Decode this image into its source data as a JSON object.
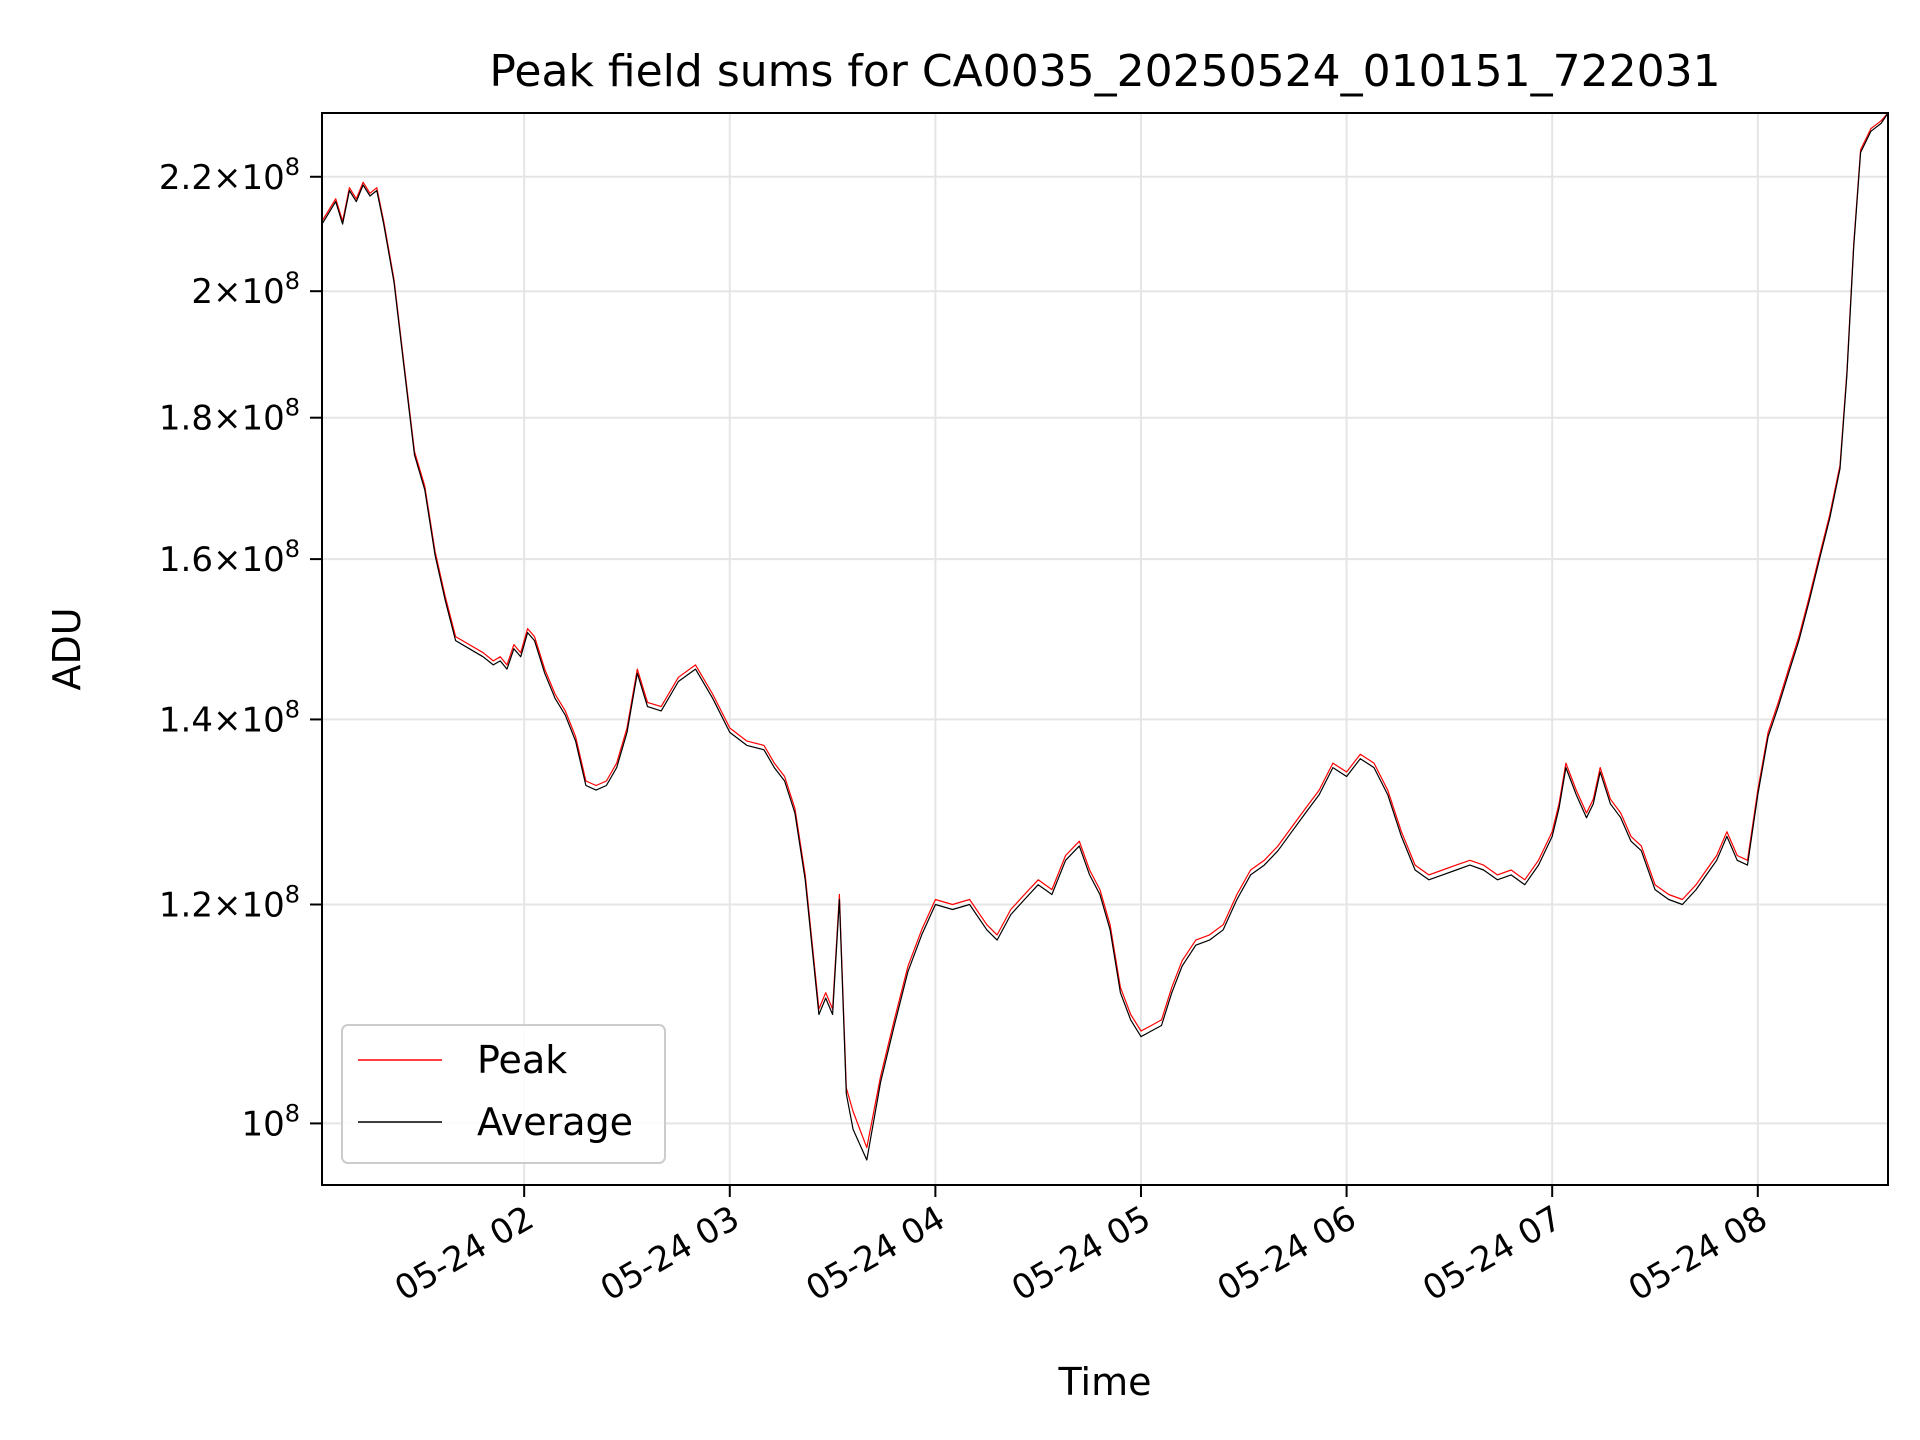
{
  "chart_data": {
    "type": "line",
    "title": "Peak field sums for CA0035_20250524_010151_722031",
    "xlabel": "Time",
    "ylabel": "ADU",
    "xlim": [
      "2025-05-24 01:01",
      "2025-05-24 08:38"
    ],
    "ylim": [
      95000000,
      232000000
    ],
    "yscale": "log",
    "grid": true,
    "legend_position": "lower left",
    "x_ticks": [
      {
        "t": "2025-05-24 02:00",
        "label": "05-24 02"
      },
      {
        "t": "2025-05-24 03:00",
        "label": "05-24 03"
      },
      {
        "t": "2025-05-24 04:00",
        "label": "05-24 04"
      },
      {
        "t": "2025-05-24 05:00",
        "label": "05-24 05"
      },
      {
        "t": "2025-05-24 06:00",
        "label": "05-24 06"
      },
      {
        "t": "2025-05-24 07:00",
        "label": "05-24 07"
      },
      {
        "t": "2025-05-24 08:00",
        "label": "05-24 08"
      }
    ],
    "y_ticks": [
      {
        "v": 100000000,
        "base": "10",
        "exp": "8"
      },
      {
        "v": 120000000,
        "mant": "1.2",
        "base": "10",
        "exp": "8"
      },
      {
        "v": 140000000,
        "mant": "1.4",
        "base": "10",
        "exp": "8"
      },
      {
        "v": 160000000,
        "mant": "1.6",
        "base": "10",
        "exp": "8"
      },
      {
        "v": 180000000,
        "mant": "1.8",
        "base": "10",
        "exp": "8"
      },
      {
        "v": 200000000,
        "mant": "2",
        "base": "10",
        "exp": "8"
      },
      {
        "v": 220000000,
        "mant": "2.2",
        "base": "10",
        "exp": "8"
      }
    ],
    "series": [
      {
        "name": "Peak",
        "color": "#ff0000",
        "width": 1.2,
        "x": [
          "2025-05-24 01:01",
          "2025-05-24 01:03",
          "2025-05-24 01:05",
          "2025-05-24 01:07",
          "2025-05-24 01:09",
          "2025-05-24 01:11",
          "2025-05-24 01:13",
          "2025-05-24 01:15",
          "2025-05-24 01:17",
          "2025-05-24 01:19",
          "2025-05-24 01:22",
          "2025-05-24 01:25",
          "2025-05-24 01:28",
          "2025-05-24 01:31",
          "2025-05-24 01:34",
          "2025-05-24 01:37",
          "2025-05-24 01:40",
          "2025-05-24 01:44",
          "2025-05-24 01:48",
          "2025-05-24 01:51",
          "2025-05-24 01:53",
          "2025-05-24 01:55",
          "2025-05-24 01:57",
          "2025-05-24 01:59",
          "2025-05-24 02:01",
          "2025-05-24 02:03",
          "2025-05-24 02:06",
          "2025-05-24 02:09",
          "2025-05-24 02:12",
          "2025-05-24 02:15",
          "2025-05-24 02:18",
          "2025-05-24 02:21",
          "2025-05-24 02:24",
          "2025-05-24 02:27",
          "2025-05-24 02:30",
          "2025-05-24 02:33",
          "2025-05-24 02:36",
          "2025-05-24 02:40",
          "2025-05-24 02:45",
          "2025-05-24 02:50",
          "2025-05-24 02:55",
          "2025-05-24 03:00",
          "2025-05-24 03:05",
          "2025-05-24 03:10",
          "2025-05-24 03:13",
          "2025-05-24 03:16",
          "2025-05-24 03:19",
          "2025-05-24 03:22",
          "2025-05-24 03:26",
          "2025-05-24 03:28",
          "2025-05-24 03:30",
          "2025-05-24 03:32",
          "2025-05-24 03:34",
          "2025-05-24 03:36",
          "2025-05-24 03:40",
          "2025-05-24 03:44",
          "2025-05-24 03:48",
          "2025-05-24 03:52",
          "2025-05-24 03:56",
          "2025-05-24 04:00",
          "2025-05-24 04:05",
          "2025-05-24 04:10",
          "2025-05-24 04:15",
          "2025-05-24 04:18",
          "2025-05-24 04:22",
          "2025-05-24 04:26",
          "2025-05-24 04:30",
          "2025-05-24 04:34",
          "2025-05-24 04:38",
          "2025-05-24 04:42",
          "2025-05-24 04:45",
          "2025-05-24 04:48",
          "2025-05-24 04:51",
          "2025-05-24 04:54",
          "2025-05-24 04:57",
          "2025-05-24 05:00",
          "2025-05-24 05:03",
          "2025-05-24 05:06",
          "2025-05-24 05:09",
          "2025-05-24 05:12",
          "2025-05-24 05:16",
          "2025-05-24 05:20",
          "2025-05-24 05:24",
          "2025-05-24 05:28",
          "2025-05-24 05:32",
          "2025-05-24 05:36",
          "2025-05-24 05:40",
          "2025-05-24 05:44",
          "2025-05-24 05:48",
          "2025-05-24 05:52",
          "2025-05-24 05:56",
          "2025-05-24 06:00",
          "2025-05-24 06:04",
          "2025-05-24 06:08",
          "2025-05-24 06:12",
          "2025-05-24 06:16",
          "2025-05-24 06:20",
          "2025-05-24 06:24",
          "2025-05-24 06:28",
          "2025-05-24 06:32",
          "2025-05-24 06:36",
          "2025-05-24 06:40",
          "2025-05-24 06:44",
          "2025-05-24 06:48",
          "2025-05-24 06:52",
          "2025-05-24 06:56",
          "2025-05-24 07:00",
          "2025-05-24 07:02",
          "2025-05-24 07:04",
          "2025-05-24 07:07",
          "2025-05-24 07:10",
          "2025-05-24 07:12",
          "2025-05-24 07:14",
          "2025-05-24 07:17",
          "2025-05-24 07:20",
          "2025-05-24 07:23",
          "2025-05-24 07:26",
          "2025-05-24 07:30",
          "2025-05-24 07:34",
          "2025-05-24 07:38",
          "2025-05-24 07:42",
          "2025-05-24 07:45",
          "2025-05-24 07:48",
          "2025-05-24 07:51",
          "2025-05-24 07:54",
          "2025-05-24 07:57",
          "2025-05-24 08:00",
          "2025-05-24 08:03",
          "2025-05-24 08:06",
          "2025-05-24 08:09",
          "2025-05-24 08:12",
          "2025-05-24 08:15",
          "2025-05-24 08:18",
          "2025-05-24 08:21",
          "2025-05-24 08:24",
          "2025-05-24 08:26",
          "2025-05-24 08:28",
          "2025-05-24 08:30",
          "2025-05-24 08:33",
          "2025-05-24 08:36",
          "2025-05-24 08:38"
        ],
        "values": [
          212000000,
          214000000,
          216000000,
          212000000,
          218000000,
          216000000,
          219000000,
          217000000,
          218000000,
          212000000,
          202000000,
          188000000,
          175000000,
          170000000,
          161000000,
          155000000,
          150000000,
          149000000,
          148000000,
          147000000,
          147500000,
          146500000,
          149000000,
          148000000,
          151000000,
          150000000,
          146000000,
          143000000,
          141000000,
          138000000,
          133000000,
          132500000,
          133000000,
          135000000,
          139000000,
          146000000,
          142000000,
          141500000,
          145000000,
          146500000,
          143000000,
          139000000,
          137500000,
          137000000,
          135000000,
          133500000,
          130000000,
          123000000,
          110000000,
          111500000,
          110000000,
          121000000,
          103000000,
          101000000,
          98000000,
          104000000,
          109000000,
          114000000,
          117500000,
          120500000,
          120000000,
          120500000,
          118000000,
          117000000,
          119500000,
          121000000,
          122500000,
          121500000,
          125000000,
          126500000,
          123500000,
          121500000,
          118000000,
          112000000,
          109500000,
          108000000,
          108500000,
          109000000,
          112000000,
          114500000,
          116500000,
          117000000,
          118000000,
          121000000,
          123500000,
          124500000,
          126000000,
          128000000,
          130000000,
          132000000,
          135000000,
          134000000,
          136000000,
          135000000,
          132000000,
          127500000,
          124000000,
          123000000,
          123500000,
          124000000,
          124500000,
          124000000,
          123000000,
          123500000,
          122500000,
          124500000,
          127500000,
          130500000,
          135000000,
          132000000,
          129500000,
          131000000,
          134500000,
          131000000,
          129500000,
          127000000,
          126000000,
          122000000,
          121000000,
          120500000,
          122000000,
          123500000,
          125000000,
          127500000,
          125000000,
          124500000,
          132000000,
          138500000,
          142000000,
          146000000,
          150000000,
          155000000,
          160500000,
          166000000,
          173000000,
          187000000,
          208000000,
          225000000,
          229000000,
          230500000,
          232000000
        ]
      },
      {
        "name": "Average",
        "color": "#000000",
        "width": 1.2,
        "x": [
          "2025-05-24 01:01",
          "2025-05-24 01:03",
          "2025-05-24 01:05",
          "2025-05-24 01:07",
          "2025-05-24 01:09",
          "2025-05-24 01:11",
          "2025-05-24 01:13",
          "2025-05-24 01:15",
          "2025-05-24 01:17",
          "2025-05-24 01:19",
          "2025-05-24 01:22",
          "2025-05-24 01:25",
          "2025-05-24 01:28",
          "2025-05-24 01:31",
          "2025-05-24 01:34",
          "2025-05-24 01:37",
          "2025-05-24 01:40",
          "2025-05-24 01:44",
          "2025-05-24 01:48",
          "2025-05-24 01:51",
          "2025-05-24 01:53",
          "2025-05-24 01:55",
          "2025-05-24 01:57",
          "2025-05-24 01:59",
          "2025-05-24 02:01",
          "2025-05-24 02:03",
          "2025-05-24 02:06",
          "2025-05-24 02:09",
          "2025-05-24 02:12",
          "2025-05-24 02:15",
          "2025-05-24 02:18",
          "2025-05-24 02:21",
          "2025-05-24 02:24",
          "2025-05-24 02:27",
          "2025-05-24 02:30",
          "2025-05-24 02:33",
          "2025-05-24 02:36",
          "2025-05-24 02:40",
          "2025-05-24 02:45",
          "2025-05-24 02:50",
          "2025-05-24 02:55",
          "2025-05-24 03:00",
          "2025-05-24 03:05",
          "2025-05-24 03:10",
          "2025-05-24 03:13",
          "2025-05-24 03:16",
          "2025-05-24 03:19",
          "2025-05-24 03:22",
          "2025-05-24 03:26",
          "2025-05-24 03:28",
          "2025-05-24 03:30",
          "2025-05-24 03:32",
          "2025-05-24 03:34",
          "2025-05-24 03:36",
          "2025-05-24 03:40",
          "2025-05-24 03:44",
          "2025-05-24 03:48",
          "2025-05-24 03:52",
          "2025-05-24 03:56",
          "2025-05-24 04:00",
          "2025-05-24 04:05",
          "2025-05-24 04:10",
          "2025-05-24 04:15",
          "2025-05-24 04:18",
          "2025-05-24 04:22",
          "2025-05-24 04:26",
          "2025-05-24 04:30",
          "2025-05-24 04:34",
          "2025-05-24 04:38",
          "2025-05-24 04:42",
          "2025-05-24 04:45",
          "2025-05-24 04:48",
          "2025-05-24 04:51",
          "2025-05-24 04:54",
          "2025-05-24 04:57",
          "2025-05-24 05:00",
          "2025-05-24 05:03",
          "2025-05-24 05:06",
          "2025-05-24 05:09",
          "2025-05-24 05:12",
          "2025-05-24 05:16",
          "2025-05-24 05:20",
          "2025-05-24 05:24",
          "2025-05-24 05:28",
          "2025-05-24 05:32",
          "2025-05-24 05:36",
          "2025-05-24 05:40",
          "2025-05-24 05:44",
          "2025-05-24 05:48",
          "2025-05-24 05:52",
          "2025-05-24 05:56",
          "2025-05-24 06:00",
          "2025-05-24 06:04",
          "2025-05-24 06:08",
          "2025-05-24 06:12",
          "2025-05-24 06:16",
          "2025-05-24 06:20",
          "2025-05-24 06:24",
          "2025-05-24 06:28",
          "2025-05-24 06:32",
          "2025-05-24 06:36",
          "2025-05-24 06:40",
          "2025-05-24 06:44",
          "2025-05-24 06:48",
          "2025-05-24 06:52",
          "2025-05-24 06:56",
          "2025-05-24 07:00",
          "2025-05-24 07:02",
          "2025-05-24 07:04",
          "2025-05-24 07:07",
          "2025-05-24 07:10",
          "2025-05-24 07:12",
          "2025-05-24 07:14",
          "2025-05-24 07:17",
          "2025-05-24 07:20",
          "2025-05-24 07:23",
          "2025-05-24 07:26",
          "2025-05-24 07:30",
          "2025-05-24 07:34",
          "2025-05-24 07:38",
          "2025-05-24 07:42",
          "2025-05-24 07:45",
          "2025-05-24 07:48",
          "2025-05-24 07:51",
          "2025-05-24 07:54",
          "2025-05-24 07:57",
          "2025-05-24 08:00",
          "2025-05-24 08:03",
          "2025-05-24 08:06",
          "2025-05-24 08:09",
          "2025-05-24 08:12",
          "2025-05-24 08:15",
          "2025-05-24 08:18",
          "2025-05-24 08:21",
          "2025-05-24 08:24",
          "2025-05-24 08:26",
          "2025-05-24 08:28",
          "2025-05-24 08:30",
          "2025-05-24 08:33",
          "2025-05-24 08:36",
          "2025-05-24 08:38"
        ],
        "values": [
          211500000,
          213500000,
          215500000,
          211500000,
          217500000,
          215500000,
          218500000,
          216500000,
          217500000,
          211500000,
          201500000,
          187500000,
          174500000,
          169500000,
          160500000,
          154500000,
          149500000,
          148500000,
          147500000,
          146500000,
          147000000,
          146000000,
          148500000,
          147500000,
          150500000,
          149500000,
          145500000,
          142500000,
          140500000,
          137500000,
          132500000,
          132000000,
          132500000,
          134500000,
          138500000,
          145500000,
          141500000,
          141000000,
          144500000,
          146000000,
          142500000,
          138500000,
          137000000,
          136500000,
          134500000,
          133000000,
          129500000,
          122500000,
          109500000,
          111000000,
          109500000,
          120500000,
          102500000,
          99500000,
          97000000,
          103500000,
          108500000,
          113500000,
          117000000,
          120000000,
          119500000,
          120000000,
          117500000,
          116500000,
          119000000,
          120500000,
          122000000,
          121000000,
          124500000,
          126000000,
          123000000,
          121000000,
          117500000,
          111500000,
          109000000,
          107500000,
          108000000,
          108500000,
          111500000,
          114000000,
          116000000,
          116500000,
          117500000,
          120500000,
          123000000,
          124000000,
          125500000,
          127500000,
          129500000,
          131500000,
          134500000,
          133500000,
          135500000,
          134500000,
          131500000,
          127000000,
          123500000,
          122500000,
          123000000,
          123500000,
          124000000,
          123500000,
          122500000,
          123000000,
          122000000,
          124000000,
          127000000,
          130000000,
          134500000,
          131500000,
          129000000,
          130500000,
          134000000,
          130500000,
          129000000,
          126500000,
          125500000,
          121500000,
          120500000,
          120000000,
          121500000,
          123000000,
          124500000,
          127000000,
          124500000,
          124000000,
          131500000,
          138000000,
          141500000,
          145500000,
          149500000,
          154500000,
          160000000,
          165500000,
          172500000,
          186500000,
          207500000,
          224500000,
          228500000,
          230000000,
          232000000
        ]
      }
    ]
  }
}
